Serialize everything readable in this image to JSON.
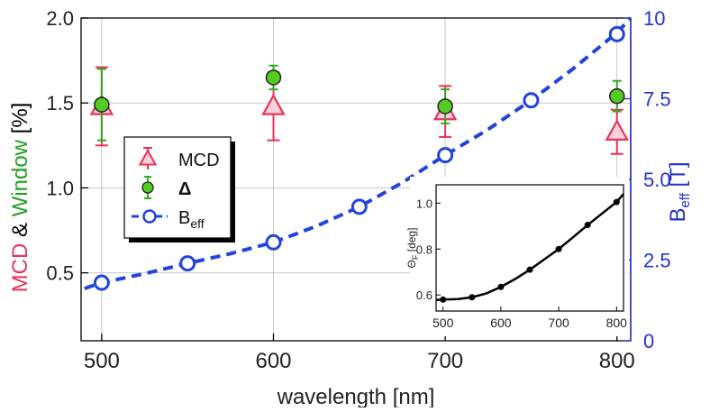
{
  "chart_data": [
    {
      "type": "scatter",
      "xlabel": "wavelength [nm]",
      "ylabel_left_parts": [
        {
          "text": "MCD",
          "color": "#e8335a"
        },
        {
          "text": " & ",
          "color": "#000000"
        },
        {
          "text": "Window",
          "color": "#22a022"
        },
        {
          "text": " [%]",
          "color": "#000000"
        }
      ],
      "ylabel_right": {
        "main": "B",
        "sub": "eff",
        "unit": " [T]",
        "color": "#2233cc"
      },
      "xlim": [
        488,
        808
      ],
      "ylim_left": [
        0.1,
        2.0
      ],
      "ylim_right": [
        0,
        10
      ],
      "x_ticks": [
        "500",
        "600",
        "700",
        "800"
      ],
      "y_ticks_left": [
        "0.5",
        "1.0",
        "1.5",
        "2.0"
      ],
      "y_ticks_right": [
        "0",
        "2.5",
        "5.0",
        "7.5",
        "10"
      ],
      "grid": true,
      "legend_position": "left",
      "legend": [
        {
          "label": "MCD",
          "marker": "triangle",
          "color": "#e8335a"
        },
        {
          "label": "Δ",
          "marker": "circle-filled",
          "color": "#55cc22"
        },
        {
          "label": "B",
          "sub": "eff",
          "marker": "circle-open-dashed",
          "color": "#2244dd"
        }
      ],
      "series": [
        {
          "name": "MCD",
          "axis": "left",
          "marker": "triangle",
          "color": "#e8335a",
          "x": [
            500,
            600,
            700,
            800
          ],
          "y": [
            1.48,
            1.48,
            1.45,
            1.33
          ],
          "err": [
            0.23,
            0.2,
            0.15,
            0.13
          ]
        },
        {
          "name": "Δ",
          "axis": "left",
          "marker": "circle-filled",
          "color": "#55cc22",
          "x": [
            500,
            600,
            700,
            800
          ],
          "y": [
            1.49,
            1.65,
            1.48,
            1.54
          ],
          "err": [
            0.21,
            0.07,
            0.1,
            0.09
          ]
        },
        {
          "name": "Beff",
          "axis": "right",
          "marker": "circle-open",
          "color": "#2244dd",
          "x": [
            500,
            550,
            600,
            650,
            700,
            750,
            800
          ],
          "y": [
            1.8,
            2.4,
            3.05,
            4.15,
            5.75,
            7.45,
            9.5
          ],
          "fit_x": [
            490,
            500,
            525,
            550,
            575,
            600,
            625,
            650,
            675,
            700,
            725,
            750,
            775,
            800,
            808
          ],
          "fit_y": [
            1.62,
            1.8,
            2.08,
            2.4,
            2.7,
            3.05,
            3.55,
            4.15,
            4.9,
            5.75,
            6.55,
            7.45,
            8.45,
            9.55,
            10.0
          ]
        }
      ]
    },
    {
      "type": "line",
      "xlabel": "",
      "ylabel": {
        "main": "Θ",
        "sub": "F",
        "unit": " [deg]"
      },
      "xlim": [
        488,
        812
      ],
      "ylim": [
        0.53,
        1.08
      ],
      "x_ticks": [
        "500",
        "600",
        "700",
        "800"
      ],
      "y_ticks": [
        "0.6",
        "0.8",
        "1.0"
      ],
      "grid": false,
      "series": [
        {
          "x": [
            500,
            550,
            600,
            650,
            700,
            750,
            800
          ],
          "y": [
            0.58,
            0.59,
            0.635,
            0.71,
            0.8,
            0.905,
            1.005
          ],
          "fit_x": [
            488,
            500,
            525,
            550,
            575,
            600,
            625,
            650,
            675,
            700,
            725,
            750,
            775,
            800,
            812
          ],
          "fit_y": [
            0.578,
            0.58,
            0.582,
            0.59,
            0.607,
            0.635,
            0.67,
            0.71,
            0.755,
            0.8,
            0.852,
            0.905,
            0.955,
            1.005,
            1.04
          ]
        }
      ]
    }
  ]
}
